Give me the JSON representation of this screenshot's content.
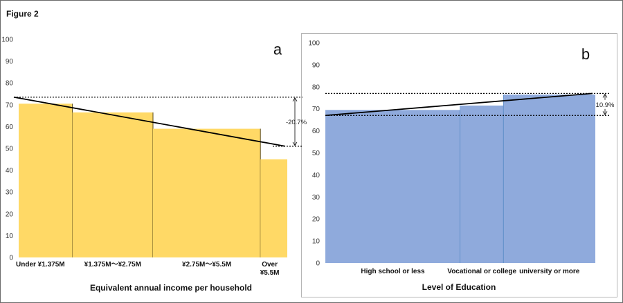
{
  "figure_title": "Figure 2",
  "chart_data": [
    {
      "panel": "a",
      "type": "bar",
      "bar_style": "variable-width",
      "color": "#FFD966",
      "edge_color": "#5a4a1a",
      "categories": [
        "Under ¥1.375M",
        "¥1.375M～¥2.75M",
        "¥2.75M～¥5.5M",
        "Over ¥5.5M"
      ],
      "category_label_lines": [
        [
          "Under ¥1.375M"
        ],
        [
          "¥1.375M～¥2.75M"
        ],
        [
          "¥2.75M～¥5.5M"
        ],
        [
          "Over",
          "¥5.5M"
        ]
      ],
      "widths": [
        0.2,
        0.3,
        0.4,
        0.1
      ],
      "values": [
        70.5,
        66.5,
        59,
        45
      ],
      "xlabel": "Equivalent annual income per household",
      "ylim": [
        0,
        100
      ],
      "yticks": [
        0,
        10,
        20,
        30,
        40,
        50,
        60,
        70,
        80,
        90,
        100
      ],
      "trend_line": {
        "start": 73.5,
        "end": 51
      },
      "annotation": "-20.7%",
      "grid": false
    },
    {
      "panel": "b",
      "type": "bar",
      "bar_style": "variable-width",
      "color": "#8FAADC",
      "edge_color": "#2E75B6",
      "categories": [
        "High school or less",
        "Vocational or college",
        "university or more"
      ],
      "category_label_lines": [
        [
          "High school or less"
        ],
        [
          "Vocational or college"
        ],
        [
          "university or more"
        ]
      ],
      "widths": [
        0.5,
        0.16,
        0.34
      ],
      "values": [
        69.5,
        71.5,
        76.5
      ],
      "xlabel": "Level of Education",
      "ylim": [
        0,
        100
      ],
      "yticks": [
        0,
        10,
        20,
        30,
        40,
        50,
        60,
        70,
        80,
        90,
        100
      ],
      "trend_line": {
        "start": 67,
        "end": 77
      },
      "annotation": "10.9%",
      "grid": false
    }
  ]
}
